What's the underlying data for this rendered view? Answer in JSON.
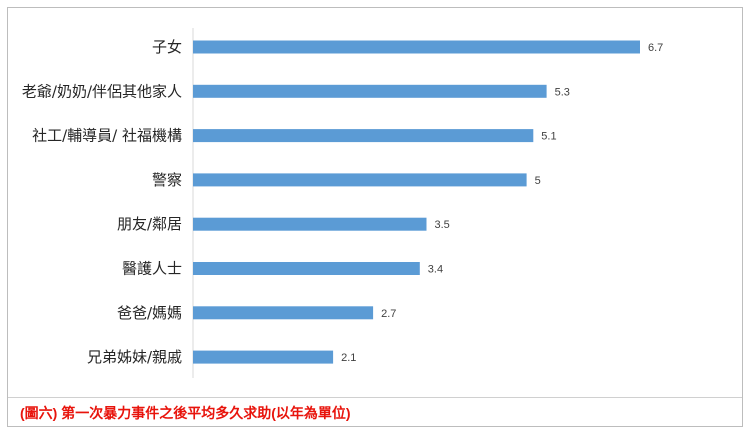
{
  "chart_data": {
    "type": "bar",
    "orientation": "horizontal",
    "categories": [
      "子女",
      "老爺/奶奶/伴侶其他家人",
      "社工/輔導員/ 社福機構",
      "警察",
      "朋友/鄰居",
      "醫護人士",
      "爸爸/媽媽",
      "兄弟姊妹/親戚"
    ],
    "values": [
      6.7,
      5.3,
      5.1,
      5,
      3.5,
      3.4,
      2.7,
      2.1
    ],
    "value_labels": [
      "6.7",
      "5.3",
      "5.1",
      "5",
      "3.5",
      "3.4",
      "2.7",
      "2.1"
    ],
    "xlim": [
      0,
      7.5
    ],
    "bar_color": "#5b9bd5",
    "grid": false,
    "legend": "none"
  },
  "caption": "(圖六) 第一次暴力事件之後平均多久求助(以年為單位)",
  "colors": {
    "caption": "#e8140c",
    "axis": "#d9d9d9",
    "text": "#262626"
  }
}
